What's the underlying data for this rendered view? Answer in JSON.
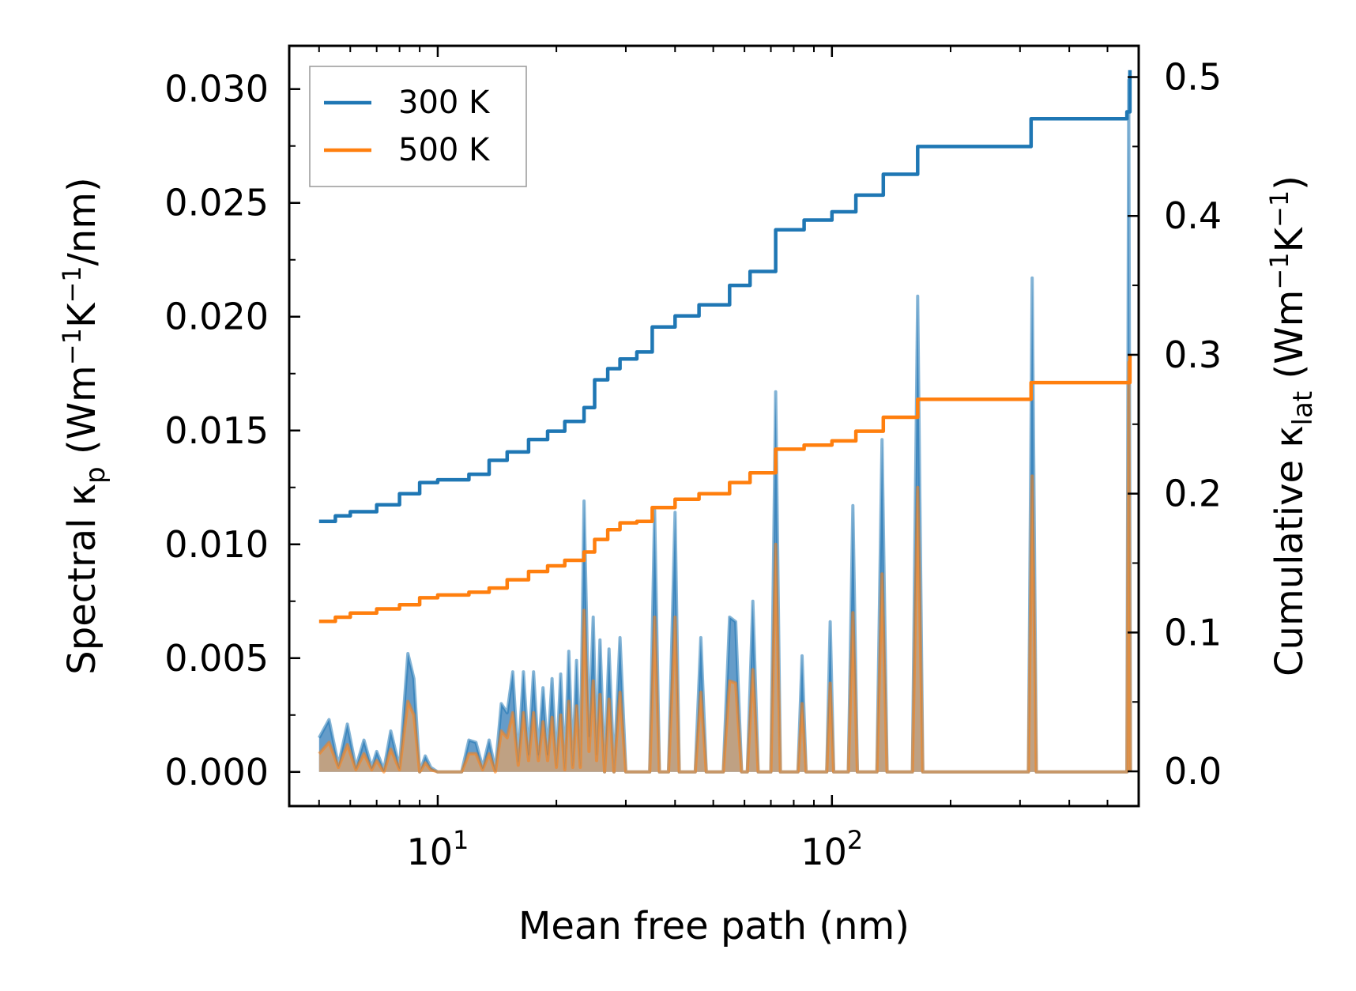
{
  "chart_data": {
    "type": "line",
    "xlabel": "Mean free path (nm)",
    "xscale": "log",
    "xlim": [
      4.2,
      600
    ],
    "x_tick_labels": [
      {
        "value": 10,
        "base": "10",
        "exp": "1"
      },
      {
        "value": 100,
        "base": "10",
        "exp": "2"
      }
    ],
    "ylabel_left": {
      "main": "Spectral κ",
      "sub": "p",
      "unit_a": " (Wm",
      "sup_a": "−1",
      "unit_b": "K",
      "sup_b": "−1",
      "unit_c": "/nm)"
    },
    "ylabel_right": {
      "main": "Cumulative κ",
      "sub": "lat",
      "unit_a": " (Wm",
      "sup_a": "−1",
      "unit_b": "K",
      "sup_b": "−1",
      "unit_c": ")"
    },
    "ylim_left": [
      -0.0015,
      0.0319
    ],
    "ylim_right": [
      -0.025,
      0.5225
    ],
    "left_ticks": [
      0.0,
      0.005,
      0.01,
      0.015,
      0.02,
      0.025,
      0.03
    ],
    "left_tick_labels": [
      "0.000",
      "0.005",
      "0.010",
      "0.015",
      "0.020",
      "0.025",
      "0.030"
    ],
    "right_ticks": [
      0.0,
      0.1,
      0.2,
      0.3,
      0.4,
      0.5
    ],
    "right_tick_labels": [
      "0.0",
      "0.1",
      "0.2",
      "0.3",
      "0.4",
      "0.5"
    ],
    "legend": {
      "position": "top-left",
      "entries": [
        "300 K",
        "500 K"
      ]
    },
    "colors": {
      "300 K": "#1f77b4",
      "500 K": "#ff7f0e",
      "fill_300": "#4a8bbf",
      "fill_500": "#c9a27b"
    },
    "series": [
      {
        "name": "300 K",
        "axis": "right",
        "cumulative": [
          [
            5,
            0.18
          ],
          [
            5.5,
            0.184
          ],
          [
            6,
            0.187
          ],
          [
            7,
            0.192
          ],
          [
            8,
            0.2
          ],
          [
            9,
            0.208
          ],
          [
            10,
            0.21
          ],
          [
            12,
            0.214
          ],
          [
            13.5,
            0.224
          ],
          [
            15,
            0.23
          ],
          [
            17,
            0.239
          ],
          [
            19,
            0.245
          ],
          [
            21,
            0.252
          ],
          [
            23.5,
            0.262
          ],
          [
            25,
            0.282
          ],
          [
            27,
            0.29
          ],
          [
            29,
            0.297
          ],
          [
            32,
            0.302
          ],
          [
            35,
            0.32
          ],
          [
            40,
            0.328
          ],
          [
            46,
            0.336
          ],
          [
            55,
            0.35
          ],
          [
            62,
            0.36
          ],
          [
            72,
            0.39
          ],
          [
            85,
            0.397
          ],
          [
            100,
            0.403
          ],
          [
            115,
            0.415
          ],
          [
            135,
            0.43
          ],
          [
            165,
            0.45
          ],
          [
            320,
            0.47
          ],
          [
            560,
            0.475
          ],
          [
            570,
            0.505
          ]
        ],
        "spectral": [
          [
            5,
            0.0015
          ],
          [
            5.3,
            0.0023
          ],
          [
            5.6,
            0.0003
          ],
          [
            5.9,
            0.0021
          ],
          [
            6.2,
            0.0002
          ],
          [
            6.5,
            0.0014
          ],
          [
            6.8,
            0.0002
          ],
          [
            7.0,
            0.0009
          ],
          [
            7.3,
            0.0001
          ],
          [
            7.6,
            0.0018
          ],
          [
            8.0,
            0.0002
          ],
          [
            8.4,
            0.0052
          ],
          [
            8.7,
            0.0041
          ],
          [
            9.0,
            0.0
          ],
          [
            9.3,
            0.0007
          ],
          [
            9.6,
            0.0002
          ],
          [
            10.0,
            0.0
          ],
          [
            11.5,
            0.0
          ],
          [
            12.0,
            0.0014
          ],
          [
            12.5,
            0.0013
          ],
          [
            13.0,
            0.0002
          ],
          [
            13.5,
            0.0014
          ],
          [
            14.0,
            0.0001
          ],
          [
            14.5,
            0.003
          ],
          [
            15.0,
            0.0026
          ],
          [
            15.5,
            0.0044
          ],
          [
            16.0,
            0.0005
          ],
          [
            16.5,
            0.0044
          ],
          [
            17.0,
            0.0008
          ],
          [
            17.5,
            0.0044
          ],
          [
            18.0,
            0.0008
          ],
          [
            18.5,
            0.0037
          ],
          [
            19.0,
            0.0008
          ],
          [
            19.5,
            0.0041
          ],
          [
            20.0,
            0.0003
          ],
          [
            20.5,
            0.0043
          ],
          [
            21.0,
            0.0002
          ],
          [
            21.5,
            0.0053
          ],
          [
            22.0,
            0.0003
          ],
          [
            22.5,
            0.0049
          ],
          [
            23.0,
            0.0003
          ],
          [
            23.5,
            0.0119
          ],
          [
            24.2,
            0.0016
          ],
          [
            24.8,
            0.0068
          ],
          [
            25.3,
            0.0008
          ],
          [
            25.8,
            0.0058
          ],
          [
            26.5,
            0.0
          ],
          [
            27.2,
            0.0054
          ],
          [
            28.0,
            0.0
          ],
          [
            29.0,
            0.0059
          ],
          [
            30.0,
            0.0
          ],
          [
            32.0,
            0.0
          ],
          [
            34.5,
            0.0
          ],
          [
            35.5,
            0.0115
          ],
          [
            36.5,
            0.0
          ],
          [
            38.5,
            0.0
          ],
          [
            40.0,
            0.0114
          ],
          [
            41.0,
            0.0
          ],
          [
            45.0,
            0.0
          ],
          [
            46.5,
            0.0059
          ],
          [
            48.0,
            0.0
          ],
          [
            53.0,
            0.0
          ],
          [
            55.0,
            0.0068
          ],
          [
            57.0,
            0.0066
          ],
          [
            59.0,
            0.0
          ],
          [
            61.0,
            0.0
          ],
          [
            63.0,
            0.0075
          ],
          [
            65.0,
            0.0
          ],
          [
            70.0,
            0.0
          ],
          [
            72.0,
            0.0167
          ],
          [
            74.0,
            0.0
          ],
          [
            82.0,
            0.0
          ],
          [
            84.0,
            0.0051
          ],
          [
            86.0,
            0.0
          ],
          [
            97.0,
            0.0
          ],
          [
            99.0,
            0.0066
          ],
          [
            101.0,
            0.0
          ],
          [
            110.0,
            0.0
          ],
          [
            113.0,
            0.0117
          ],
          [
            116.0,
            0.0
          ],
          [
            130.0,
            0.0
          ],
          [
            134.0,
            0.0146
          ],
          [
            138.0,
            0.0
          ],
          [
            160.0,
            0.0
          ],
          [
            165.0,
            0.0209
          ],
          [
            170.0,
            0.0
          ],
          [
            315.0,
            0.0
          ],
          [
            322.0,
            0.0217
          ],
          [
            330.0,
            0.0
          ],
          [
            560.0,
            0.0
          ],
          [
            566.0,
            0.0304
          ],
          [
            572.0,
            0.0
          ]
        ]
      },
      {
        "name": "500 K",
        "axis": "right",
        "cumulative": [
          [
            5,
            0.108
          ],
          [
            5.5,
            0.111
          ],
          [
            6,
            0.114
          ],
          [
            7,
            0.117
          ],
          [
            8,
            0.12
          ],
          [
            9,
            0.125
          ],
          [
            10,
            0.127
          ],
          [
            12,
            0.129
          ],
          [
            13.5,
            0.132
          ],
          [
            15,
            0.138
          ],
          [
            17,
            0.144
          ],
          [
            19,
            0.148
          ],
          [
            21,
            0.152
          ],
          [
            23.5,
            0.158
          ],
          [
            25,
            0.167
          ],
          [
            27,
            0.174
          ],
          [
            29,
            0.179
          ],
          [
            32,
            0.18
          ],
          [
            35,
            0.19
          ],
          [
            40,
            0.196
          ],
          [
            46,
            0.2
          ],
          [
            55,
            0.208
          ],
          [
            62,
            0.215
          ],
          [
            72,
            0.232
          ],
          [
            85,
            0.235
          ],
          [
            100,
            0.238
          ],
          [
            115,
            0.245
          ],
          [
            135,
            0.255
          ],
          [
            165,
            0.268
          ],
          [
            320,
            0.28
          ],
          [
            560,
            0.28
          ],
          [
            570,
            0.3
          ]
        ],
        "spectral": [
          [
            5,
            0.0008
          ],
          [
            5.3,
            0.0013
          ],
          [
            5.6,
            0.0002
          ],
          [
            5.9,
            0.0012
          ],
          [
            6.2,
            0.0001
          ],
          [
            6.5,
            0.0008
          ],
          [
            6.8,
            0.0001
          ],
          [
            7.0,
            0.0005
          ],
          [
            7.3,
            0.0
          ],
          [
            7.6,
            0.001
          ],
          [
            8.0,
            0.0001
          ],
          [
            8.4,
            0.0031
          ],
          [
            8.7,
            0.0025
          ],
          [
            9.0,
            0.0
          ],
          [
            9.3,
            0.0004
          ],
          [
            9.6,
            0.0001
          ],
          [
            10.0,
            0.0
          ],
          [
            11.5,
            0.0
          ],
          [
            12.0,
            0.0008
          ],
          [
            12.5,
            0.0008
          ],
          [
            13.0,
            0.0001
          ],
          [
            13.5,
            0.0008
          ],
          [
            14.0,
            0.0
          ],
          [
            14.5,
            0.0018
          ],
          [
            15.0,
            0.0015
          ],
          [
            15.5,
            0.0026
          ],
          [
            16.0,
            0.0003
          ],
          [
            16.5,
            0.0026
          ],
          [
            17.0,
            0.0005
          ],
          [
            17.5,
            0.0026
          ],
          [
            18.0,
            0.0005
          ],
          [
            18.5,
            0.0022
          ],
          [
            19.0,
            0.0005
          ],
          [
            19.5,
            0.0024
          ],
          [
            20.0,
            0.0002
          ],
          [
            20.5,
            0.0025
          ],
          [
            21.0,
            0.0001
          ],
          [
            21.5,
            0.0031
          ],
          [
            22.0,
            0.0002
          ],
          [
            22.5,
            0.0029
          ],
          [
            23.0,
            0.0002
          ],
          [
            23.5,
            0.0071
          ],
          [
            24.2,
            0.0009
          ],
          [
            24.8,
            0.004
          ],
          [
            25.3,
            0.0005
          ],
          [
            25.8,
            0.0034
          ],
          [
            26.5,
            0.0
          ],
          [
            27.2,
            0.0032
          ],
          [
            28.0,
            0.0
          ],
          [
            29.0,
            0.0035
          ],
          [
            30.0,
            0.0
          ],
          [
            32.0,
            0.0
          ],
          [
            34.5,
            0.0
          ],
          [
            35.5,
            0.0068
          ],
          [
            36.5,
            0.0
          ],
          [
            38.5,
            0.0
          ],
          [
            40.0,
            0.0068
          ],
          [
            41.0,
            0.0
          ],
          [
            45.0,
            0.0
          ],
          [
            46.5,
            0.0035
          ],
          [
            48.0,
            0.0
          ],
          [
            53.0,
            0.0
          ],
          [
            55.0,
            0.004
          ],
          [
            57.0,
            0.0039
          ],
          [
            59.0,
            0.0
          ],
          [
            61.0,
            0.0
          ],
          [
            63.0,
            0.0045
          ],
          [
            65.0,
            0.0
          ],
          [
            70.0,
            0.0
          ],
          [
            72.0,
            0.01
          ],
          [
            74.0,
            0.0
          ],
          [
            82.0,
            0.0
          ],
          [
            84.0,
            0.003
          ],
          [
            86.0,
            0.0
          ],
          [
            97.0,
            0.0
          ],
          [
            99.0,
            0.0039
          ],
          [
            101.0,
            0.0
          ],
          [
            110.0,
            0.0
          ],
          [
            113.0,
            0.007
          ],
          [
            116.0,
            0.0
          ],
          [
            130.0,
            0.0
          ],
          [
            134.0,
            0.0087
          ],
          [
            138.0,
            0.0
          ],
          [
            160.0,
            0.0
          ],
          [
            165.0,
            0.0125
          ],
          [
            170.0,
            0.0
          ],
          [
            315.0,
            0.0
          ],
          [
            322.0,
            0.013
          ],
          [
            330.0,
            0.0
          ],
          [
            560.0,
            0.0
          ],
          [
            566.0,
            0.018
          ],
          [
            572.0,
            0.0
          ]
        ]
      }
    ]
  }
}
